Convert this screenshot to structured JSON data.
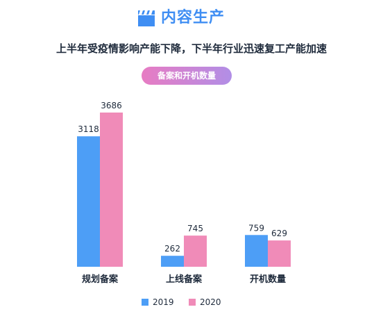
{
  "header": {
    "title": "内容生产",
    "icon": "clapperboard-icon"
  },
  "subtitle": "上半年受疫情影响产能下降，下半年行业迅速复工产能加速",
  "pill_label": "备案和开机数量",
  "colors": {
    "accent": "#3f8ef3",
    "series_2019": "#4d9ef6",
    "series_2020": "#f08bb8"
  },
  "chart_data": {
    "type": "bar",
    "categories": [
      "规划备案",
      "上线备案",
      "开机数量"
    ],
    "series": [
      {
        "name": "2019",
        "values": [
          3118,
          262,
          759
        ]
      },
      {
        "name": "2020",
        "values": [
          3686,
          745,
          629
        ]
      }
    ],
    "title": "备案和开机数量",
    "xlabel": "",
    "ylabel": "",
    "ylim": [
      0,
      3686
    ],
    "grid": false,
    "legend": "bottom-center"
  }
}
